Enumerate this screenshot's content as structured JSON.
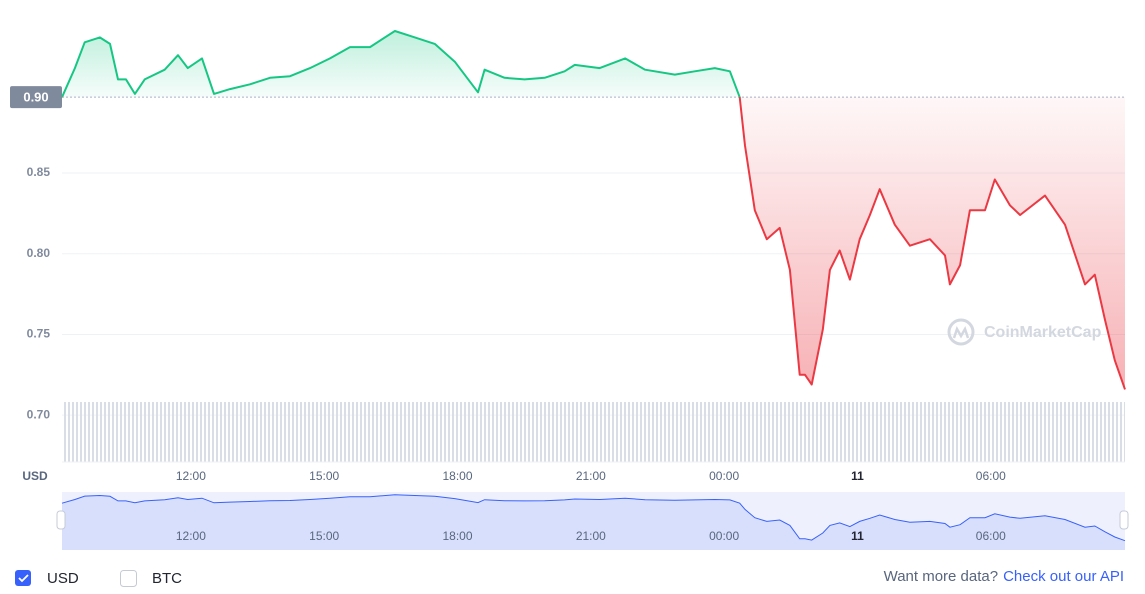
{
  "chart_data": {
    "type": "line",
    "y_axis_label": "USD",
    "x": [
      9.1,
      9.39,
      9.61,
      9.95,
      10.18,
      10.36,
      10.54,
      10.74,
      10.96,
      11.41,
      11.71,
      11.93,
      12.25,
      12.52,
      12.88,
      13.33,
      13.78,
      14.23,
      14.68,
      15.13,
      15.58,
      16.03,
      16.59,
      17.04,
      17.49,
      17.94,
      18.46,
      18.61,
      19.06,
      19.51,
      19.96,
      20.41,
      20.64,
      21.2,
      21.77,
      22.22,
      22.89,
      23.34,
      23.79,
      24.13,
      24.35,
      24.47,
      24.69,
      24.96,
      25.25,
      25.48,
      25.7,
      25.82,
      25.97,
      26.22,
      26.38,
      26.6,
      26.83,
      27.05,
      27.28,
      27.5,
      27.84,
      28.18,
      28.63,
      28.97,
      29.08,
      29.31,
      29.53,
      29.87,
      30.09,
      30.43,
      30.66,
      31.22,
      31.67,
      32.12,
      32.34,
      32.57,
      32.79,
      33.02
    ],
    "values": [
      0.897,
      0.915,
      0.931,
      0.934,
      0.93,
      0.908,
      0.908,
      0.899,
      0.908,
      0.914,
      0.923,
      0.915,
      0.921,
      0.899,
      0.902,
      0.905,
      0.909,
      0.91,
      0.915,
      0.921,
      0.928,
      0.928,
      0.938,
      0.934,
      0.93,
      0.919,
      0.9,
      0.914,
      0.909,
      0.908,
      0.909,
      0.913,
      0.917,
      0.915,
      0.921,
      0.914,
      0.911,
      0.913,
      0.915,
      0.913,
      0.897,
      0.867,
      0.827,
      0.809,
      0.816,
      0.79,
      0.725,
      0.725,
      0.719,
      0.753,
      0.79,
      0.802,
      0.784,
      0.809,
      0.824,
      0.84,
      0.818,
      0.805,
      0.809,
      0.799,
      0.781,
      0.793,
      0.827,
      0.827,
      0.846,
      0.83,
      0.824,
      0.836,
      0.818,
      0.781,
      0.787,
      0.759,
      0.734,
      0.716
    ],
    "xlim": [
      9.1,
      33.02
    ],
    "xticks": [
      {
        "value": 12,
        "label": "12:00"
      },
      {
        "value": 15,
        "label": "15:00"
      },
      {
        "value": 18,
        "label": "18:00"
      },
      {
        "value": 21,
        "label": "21:00"
      },
      {
        "value": 24,
        "label": "00:00"
      },
      {
        "value": 27,
        "label": "11"
      },
      {
        "value": 30,
        "label": "06:00"
      }
    ],
    "ylim": [
      0.671,
      0.951
    ],
    "yticks": [
      {
        "value": 0.7,
        "label": "0.70"
      },
      {
        "value": 0.75,
        "label": "0.75"
      },
      {
        "value": 0.8,
        "label": "0.80"
      },
      {
        "value": 0.85,
        "label": "0.85"
      }
    ],
    "reference": {
      "value": 0.897,
      "label": "0.90"
    },
    "up_color": "#16c784",
    "down_color": "#ea3943",
    "navigator_color": "#3861fb",
    "grid": true,
    "watermark": "CoinMarketCap",
    "legend_items": [
      {
        "label": "USD",
        "checked": true
      },
      {
        "label": "BTC",
        "checked": false
      }
    ],
    "footer": {
      "text": "Want more data?",
      "link": "Check out our API"
    }
  }
}
